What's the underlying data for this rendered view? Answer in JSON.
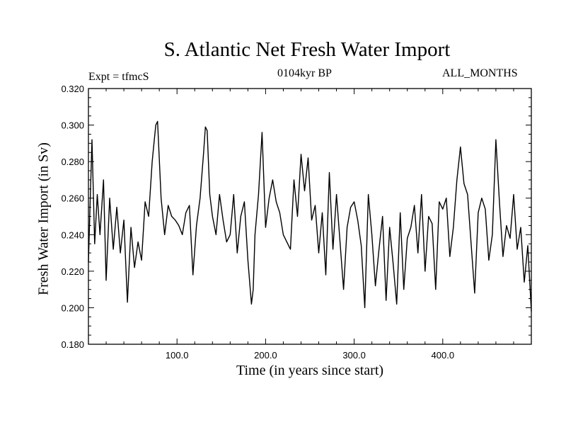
{
  "chart_data": {
    "type": "line",
    "title": "S. Atlantic Net Fresh Water Import",
    "left_label": "Expt = tfmcS",
    "center_label": "0104kyr BP",
    "right_label": "ALL_MONTHS",
    "xlabel": "Time (in years since start)",
    "ylabel": "Fresh Water Import (in Sv)",
    "xlim": [
      0,
      500
    ],
    "ylim": [
      0.18,
      0.32
    ],
    "xticks": [
      100,
      200,
      300,
      400
    ],
    "xtick_labels": [
      "100.0",
      "200.0",
      "300.0",
      "400.0"
    ],
    "yticks": [
      0.18,
      0.2,
      0.22,
      0.24,
      0.26,
      0.28,
      0.3,
      0.32
    ],
    "ytick_labels": [
      "0.180",
      "0.200",
      "0.220",
      "0.240",
      "0.260",
      "0.280",
      "0.300",
      "0.320"
    ],
    "grid": false,
    "line_color": "#000000",
    "series": [
      {
        "x": [
          0,
          4,
          7,
          10,
          13,
          17,
          20,
          24,
          28,
          32,
          36,
          40,
          44,
          48,
          52,
          56,
          60,
          64,
          68,
          72,
          74,
          76,
          78,
          82,
          86,
          90,
          94,
          98,
          102,
          106,
          110,
          114,
          118,
          122,
          126,
          130,
          132,
          134,
          137,
          140,
          144,
          148,
          152,
          156,
          160,
          164,
          168,
          172,
          176,
          180,
          184,
          186,
          188,
          192,
          196,
          200,
          204,
          208,
          212,
          216,
          220,
          224,
          228,
          232,
          236,
          240,
          244,
          248,
          252,
          256,
          260,
          264,
          268,
          272,
          276,
          280,
          284,
          288,
          292,
          296,
          300,
          304,
          308,
          312,
          316,
          320,
          324,
          328,
          332,
          336,
          340,
          344,
          348,
          352,
          356,
          360,
          364,
          368,
          372,
          376,
          380,
          384,
          388,
          392,
          396,
          400,
          404,
          408,
          412,
          416,
          420,
          424,
          428,
          432,
          436,
          440,
          444,
          448,
          452,
          456,
          460,
          464,
          468,
          472,
          476,
          480,
          484,
          488,
          492,
          496,
          500
        ],
        "y": [
          0.225,
          0.292,
          0.235,
          0.262,
          0.24,
          0.27,
          0.215,
          0.26,
          0.232,
          0.255,
          0.23,
          0.248,
          0.203,
          0.244,
          0.222,
          0.236,
          0.226,
          0.258,
          0.25,
          0.28,
          0.29,
          0.3,
          0.302,
          0.26,
          0.24,
          0.256,
          0.25,
          0.248,
          0.245,
          0.24,
          0.252,
          0.256,
          0.218,
          0.245,
          0.26,
          0.285,
          0.299,
          0.297,
          0.262,
          0.25,
          0.24,
          0.262,
          0.248,
          0.236,
          0.24,
          0.262,
          0.23,
          0.25,
          0.258,
          0.226,
          0.202,
          0.21,
          0.24,
          0.262,
          0.296,
          0.244,
          0.26,
          0.27,
          0.258,
          0.252,
          0.24,
          0.236,
          0.232,
          0.27,
          0.25,
          0.284,
          0.264,
          0.282,
          0.248,
          0.256,
          0.23,
          0.252,
          0.218,
          0.274,
          0.232,
          0.262,
          0.236,
          0.21,
          0.244,
          0.255,
          0.258,
          0.248,
          0.234,
          0.2,
          0.262,
          0.24,
          0.212,
          0.232,
          0.25,
          0.204,
          0.244,
          0.224,
          0.202,
          0.252,
          0.21,
          0.238,
          0.244,
          0.256,
          0.23,
          0.262,
          0.22,
          0.25,
          0.246,
          0.21,
          0.258,
          0.254,
          0.26,
          0.228,
          0.244,
          0.27,
          0.288,
          0.268,
          0.262,
          0.235,
          0.208,
          0.252,
          0.26,
          0.254,
          0.226,
          0.24,
          0.292,
          0.258,
          0.228,
          0.245,
          0.238,
          0.262,
          0.232,
          0.244,
          0.214,
          0.234,
          0.198
        ]
      }
    ]
  }
}
